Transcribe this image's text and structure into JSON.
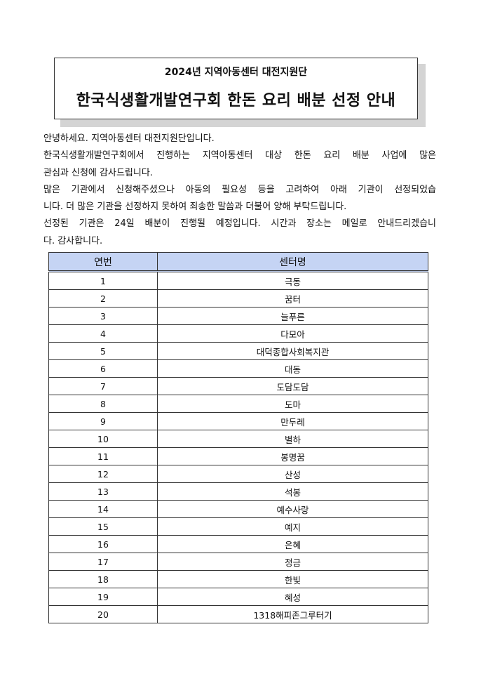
{
  "header": {
    "subtitle": "2024년 지역아동센터 대전지원단",
    "title": "한국식생활개발연구회 한돈 요리 배분 선정 안내"
  },
  "body_lines": [
    {
      "text": "안녕하세요. 지역아동센터 대전지원단입니다.",
      "last": true
    },
    {
      "text": "한국식생활개발연구회에서 진행하는 지역아동센터 대상 한돈 요리 배분 사업에 많은",
      "last": false
    },
    {
      "text": "관심과 신청에 감사드립니다.",
      "last": true
    },
    {
      "text": "많은 기관에서 신청해주셨으나 아동의 필요성 등을 고려하여 아래 기관이 선정되었습",
      "last": false
    },
    {
      "text": "니다. 더 많은 기관을 선정하지 못하여 죄송한 말씀과 더불어 양해 부탁드립니다.",
      "last": true
    },
    {
      "text": "선정된 기관은 24일 배분이 진행될 예정입니다. 시간과 장소는 메일로 안내드리겠습니",
      "last": false
    },
    {
      "text": "다. 감사합니다.",
      "last": true
    }
  ],
  "table": {
    "headers": [
      "연번",
      "센터명"
    ],
    "rows": [
      [
        "1",
        "극동"
      ],
      [
        "2",
        "꿈터"
      ],
      [
        "3",
        "늘푸른"
      ],
      [
        "4",
        "다모아"
      ],
      [
        "5",
        "대덕종합사회복지관"
      ],
      [
        "6",
        "대동"
      ],
      [
        "7",
        "도담도담"
      ],
      [
        "8",
        "도마"
      ],
      [
        "9",
        "만두레"
      ],
      [
        "10",
        "별하"
      ],
      [
        "11",
        "봉명꿈"
      ],
      [
        "12",
        "산성"
      ],
      [
        "13",
        "석봉"
      ],
      [
        "14",
        "예수사랑"
      ],
      [
        "15",
        "예지"
      ],
      [
        "16",
        "은혜"
      ],
      [
        "17",
        "정금"
      ],
      [
        "18",
        "한빛"
      ],
      [
        "19",
        "혜성"
      ],
      [
        "20",
        "1318해피존그루터기"
      ]
    ]
  },
  "colors": {
    "table_header_bg": "#c5d4f4",
    "title_shadow": "#d4d4d4"
  }
}
